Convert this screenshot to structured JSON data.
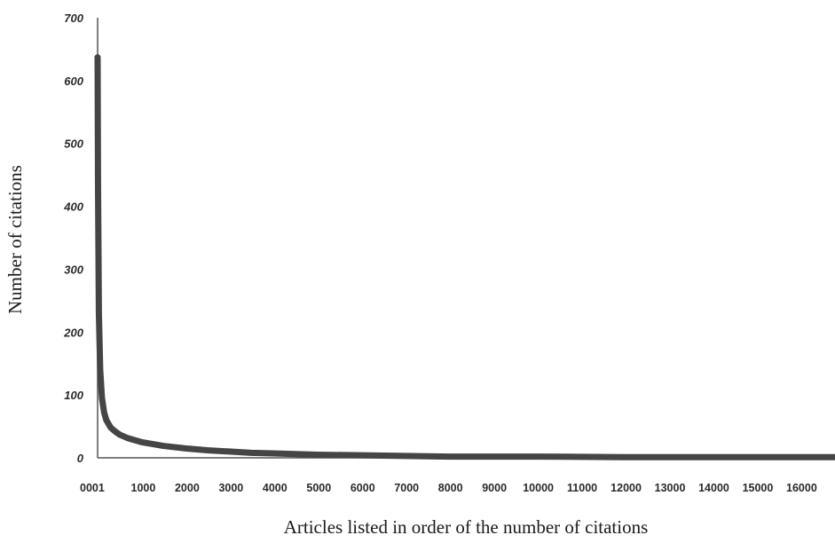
{
  "chart_data": {
    "type": "line",
    "title": "",
    "xlabel": "Articles listed in order of the number of citations",
    "ylabel": "Number of citations",
    "ylim": [
      0,
      700
    ],
    "xlim": [
      1,
      16800
    ],
    "yticks": [
      "0",
      "100",
      "200",
      "300",
      "400",
      "500",
      "600",
      "700"
    ],
    "xticks": [
      "0001",
      "1000",
      "2000",
      "3000",
      "4000",
      "5000",
      "6000",
      "7000",
      "8000",
      "9000",
      "10000",
      "11000",
      "12000",
      "13000",
      "14000",
      "15000",
      "16000"
    ],
    "grid": false,
    "line_color": "#454545",
    "series": [
      {
        "x": [
          1,
          10,
          30,
          60,
          100,
          150,
          200,
          300,
          400,
          500,
          700,
          1000,
          1500,
          2000,
          2500,
          3000,
          3500,
          4000,
          5000,
          6000,
          7000,
          8000,
          10000,
          12000,
          14000,
          16000,
          16800
        ],
        "values": [
          637,
          440,
          230,
          140,
          95,
          72,
          60,
          48,
          42,
          37,
          31,
          25,
          19,
          15,
          12,
          10,
          8,
          7,
          5,
          4,
          3,
          2,
          2,
          1,
          1,
          1,
          1
        ]
      }
    ]
  }
}
